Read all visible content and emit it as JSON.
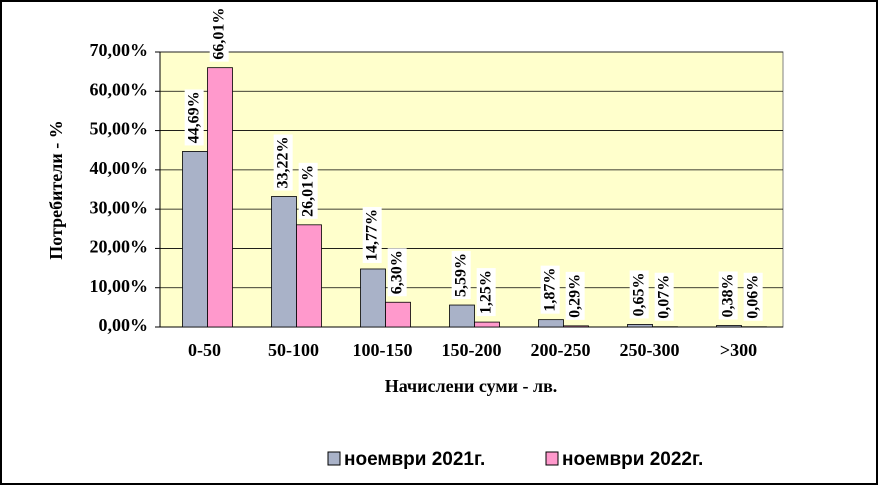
{
  "chart_data": {
    "type": "bar",
    "x_label": "Начислени суми - лв.",
    "y_label": "Потребители - %",
    "categories": [
      "0-50",
      "50-100",
      "100-150",
      "150-200",
      "200-250",
      "250-300",
      ">300"
    ],
    "series": [
      {
        "name": "ноември 2021г.",
        "color": "#a9b2c8",
        "values": [
          44.69,
          33.22,
          14.77,
          5.59,
          1.87,
          0.65,
          0.38
        ],
        "value_labels": [
          "44,69%",
          "33,22%",
          "14,77%",
          "5,59%",
          "1,87%",
          "0,65%",
          "0,38%"
        ]
      },
      {
        "name": "ноември 2022г.",
        "color": "#ff99cc",
        "values": [
          66.01,
          26.01,
          6.3,
          1.25,
          0.29,
          0.07,
          0.06
        ],
        "value_labels": [
          "66,01%",
          "26,01%",
          "6,30%",
          "1,25%",
          "0,29%",
          "0,07%",
          "0,06%"
        ]
      }
    ],
    "ylim": [
      0,
      70
    ],
    "yticks": [
      {
        "value": 0,
        "label": "0,00%"
      },
      {
        "value": 10,
        "label": "10,00%"
      },
      {
        "value": 20,
        "label": "20,00%"
      },
      {
        "value": 30,
        "label": "30,00%"
      },
      {
        "value": 40,
        "label": "40,00%"
      },
      {
        "value": 50,
        "label": "50,00%"
      },
      {
        "value": 60,
        "label": "60,00%"
      },
      {
        "value": 70,
        "label": "70,00%"
      }
    ],
    "grid": true
  }
}
